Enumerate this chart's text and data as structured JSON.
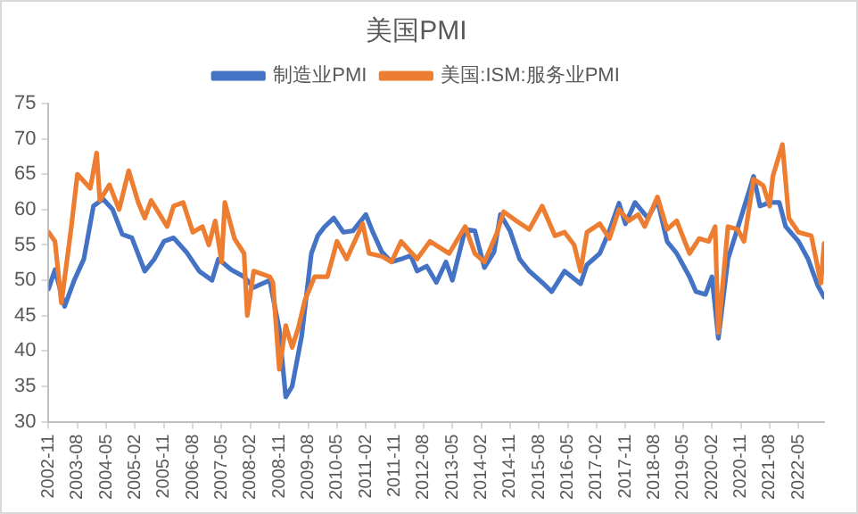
{
  "chart_data": {
    "type": "line",
    "title": "美国PMI",
    "xlim": [
      "2002-11",
      "2023-01"
    ],
    "xticks": [
      "2002-11",
      "2003-08",
      "2004-05",
      "2005-02",
      "2005-11",
      "2006-08",
      "2007-05",
      "2008-02",
      "2008-11",
      "2009-08",
      "2010-05",
      "2011-02",
      "2011-11",
      "2012-08",
      "2013-05",
      "2014-02",
      "2014-11",
      "2015-08",
      "2016-05",
      "2017-02",
      "2017-11",
      "2018-08",
      "2019-05",
      "2020-02",
      "2020-11",
      "2021-08",
      "2022-05"
    ],
    "ylim": [
      30,
      75
    ],
    "yticks": [
      30,
      35,
      40,
      45,
      50,
      55,
      60,
      65,
      70,
      75
    ],
    "grid": false,
    "legend": "top",
    "marker": "none",
    "line_style": "solid",
    "series": [
      {
        "name": "制造业PMI",
        "color": "#4472c4",
        "x": [
          "2002-11",
          "2003-01",
          "2003-04",
          "2003-07",
          "2003-10",
          "2004-01",
          "2004-04",
          "2004-07",
          "2004-10",
          "2005-01",
          "2005-05",
          "2005-08",
          "2005-11",
          "2006-02",
          "2006-06",
          "2006-10",
          "2007-02",
          "2007-04",
          "2007-08",
          "2007-12",
          "2008-03",
          "2008-08",
          "2008-11",
          "2009-01",
          "2009-03",
          "2009-06",
          "2009-09",
          "2009-11",
          "2010-01",
          "2010-04",
          "2010-07",
          "2010-10",
          "2011-02",
          "2011-04",
          "2011-07",
          "2011-10",
          "2012-01",
          "2012-04",
          "2012-06",
          "2012-09",
          "2012-12",
          "2013-03",
          "2013-05",
          "2013-09",
          "2013-12",
          "2014-03",
          "2014-06",
          "2014-08",
          "2014-11",
          "2015-02",
          "2015-05",
          "2015-09",
          "2015-12",
          "2016-04",
          "2016-09",
          "2016-11",
          "2017-03",
          "2017-06",
          "2017-09",
          "2017-11",
          "2018-02",
          "2018-06",
          "2018-09",
          "2018-12",
          "2019-03",
          "2019-07",
          "2019-09",
          "2019-12",
          "2020-02",
          "2020-04",
          "2020-07",
          "2020-11",
          "2021-03",
          "2021-05",
          "2021-08",
          "2021-11",
          "2022-01",
          "2022-05",
          "2022-08",
          "2022-11",
          "2023-01"
        ],
        "values": [
          48.8,
          51.5,
          46.3,
          50,
          53,
          60.5,
          61.5,
          60,
          56.5,
          56,
          51.3,
          53,
          55.5,
          56,
          54,
          51.3,
          50,
          53,
          51.5,
          50.5,
          49,
          50,
          43,
          33.5,
          35,
          42.2,
          53.8,
          56.3,
          57.5,
          58.8,
          56.8,
          57,
          59.3,
          57,
          54,
          52.6,
          53,
          53.5,
          51.3,
          52,
          49.7,
          52.6,
          50,
          57.2,
          57,
          51.8,
          54,
          59.3,
          57,
          53,
          51.3,
          49.7,
          48.4,
          51.3,
          49.5,
          52.2,
          53.8,
          57,
          60.9,
          58,
          61,
          58.8,
          61.3,
          55.5,
          53.8,
          50.5,
          48.4,
          48,
          50.5,
          41.8,
          53,
          58.8,
          64.7,
          60.5,
          61,
          61,
          57.6,
          55.5,
          53,
          49.3,
          47.6
        ]
      },
      {
        "name": "美国:ISM:服务业PMI",
        "color": "#ed7d31",
        "x": [
          "2002-11",
          "2003-01",
          "2003-03",
          "2003-06",
          "2003-08",
          "2003-12",
          "2004-02",
          "2004-03",
          "2004-06",
          "2004-09",
          "2004-12",
          "2005-03",
          "2005-05",
          "2005-07",
          "2005-12",
          "2006-02",
          "2006-05",
          "2006-08",
          "2006-11",
          "2007-01",
          "2007-03",
          "2007-05",
          "2007-06",
          "2007-09",
          "2007-12",
          "2008-01",
          "2008-03",
          "2008-08",
          "2008-09",
          "2008-11",
          "2009-01",
          "2009-03",
          "2009-05",
          "2009-07",
          "2009-10",
          "2010-02",
          "2010-05",
          "2010-08",
          "2011-01",
          "2011-03",
          "2011-07",
          "2011-10",
          "2012-01",
          "2012-06",
          "2012-10",
          "2013-04",
          "2013-09",
          "2013-12",
          "2014-03",
          "2014-07",
          "2014-09",
          "2015-01",
          "2015-05",
          "2015-09",
          "2016-01",
          "2016-04",
          "2016-07",
          "2016-09",
          "2016-11",
          "2017-03",
          "2017-06",
          "2017-09",
          "2017-12",
          "2018-03",
          "2018-05",
          "2018-09",
          "2018-12",
          "2019-03",
          "2019-07",
          "2019-10",
          "2020-01",
          "2020-03",
          "2020-04",
          "2020-07",
          "2020-10",
          "2020-12",
          "2021-03",
          "2021-06",
          "2021-08",
          "2021-09",
          "2021-12",
          "2022-02",
          "2022-05",
          "2022-09",
          "2022-12",
          "2023-01"
        ],
        "values": [
          56.8,
          55.5,
          46.8,
          57.2,
          65,
          63,
          68,
          61.3,
          63.5,
          60,
          65.5,
          61,
          58.8,
          61.3,
          57.6,
          60.5,
          61,
          56.8,
          57.6,
          55,
          58.4,
          52.6,
          61,
          55.9,
          53.8,
          45,
          51.3,
          50.5,
          49.7,
          37.4,
          43.6,
          40.5,
          43.4,
          47.2,
          50.5,
          50.5,
          55.5,
          53,
          58,
          53.8,
          53.4,
          52.6,
          55.5,
          53,
          55.5,
          53.8,
          57.6,
          53.8,
          52.6,
          56.8,
          59.7,
          58.4,
          57.2,
          60.5,
          56.3,
          56.8,
          55,
          51.3,
          56.8,
          58,
          55.9,
          60,
          58.4,
          59.3,
          57.6,
          61.8,
          57.2,
          58.4,
          53.8,
          55.9,
          55.5,
          57.6,
          42.6,
          57.6,
          57.2,
          55.5,
          64.3,
          63.4,
          60.5,
          64.7,
          69.2,
          58.8,
          56.8,
          56.3,
          49.6,
          55.2
        ]
      }
    ]
  }
}
